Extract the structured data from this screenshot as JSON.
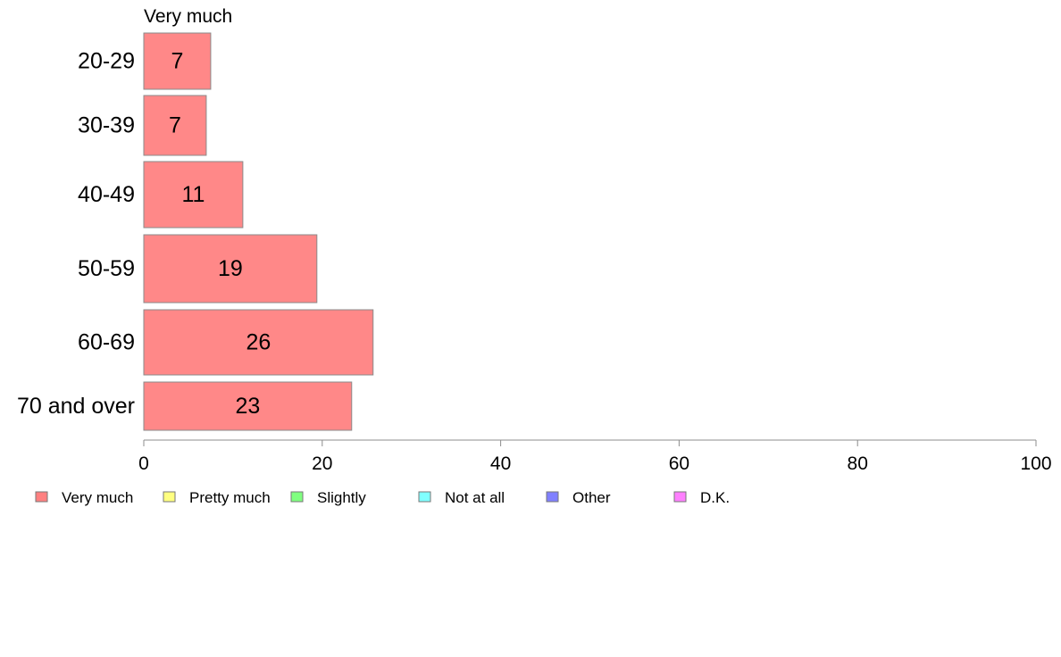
{
  "chart_data": {
    "type": "bar",
    "orientation": "horizontal",
    "title": "Very much",
    "categories": [
      "20-29",
      "30-39",
      "40-49",
      "50-59",
      "60-69",
      "70 and over"
    ],
    "series": [
      {
        "name": "Very much",
        "color": "#ff8888",
        "values": [
          7,
          7,
          11,
          19,
          26,
          23
        ],
        "plotted_values": [
          7.5,
          7.0,
          11.1,
          19.4,
          25.7,
          23.3
        ]
      }
    ],
    "xlim": [
      0,
      100
    ],
    "xticks": [
      0,
      20,
      40,
      60,
      80,
      100
    ],
    "grid": false,
    "legend_position": "bottom",
    "legend": [
      {
        "label": "Very much",
        "color": "#ff8080"
      },
      {
        "label": "Pretty much",
        "color": "#ffff80"
      },
      {
        "label": "Slightly",
        "color": "#80ff80"
      },
      {
        "label": "Not at all",
        "color": "#80ffff"
      },
      {
        "label": "Other",
        "color": "#8080ff"
      },
      {
        "label": "D.K.",
        "color": "#ff80ff"
      }
    ]
  }
}
